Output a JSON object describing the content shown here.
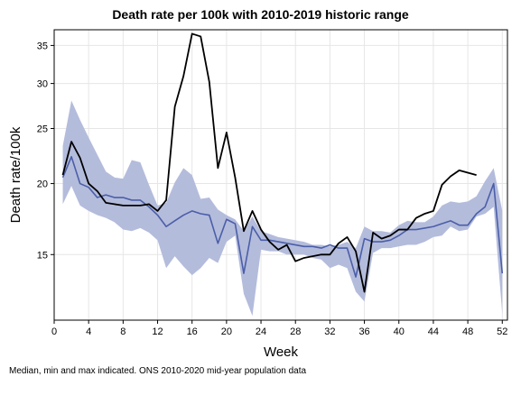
{
  "chart_data": {
    "type": "line",
    "title": "Death rate per 100k with 2010-2019 historic range",
    "xlabel": "Week",
    "ylabel": "Death rate/100k",
    "note": "Median, min and max indicated. ONS 2010-2020 mid-year population data",
    "xlim": [
      0,
      52.6
    ],
    "ylim": [
      11.5,
      37.3
    ],
    "yscale": "log",
    "grid": true,
    "xticks": [
      0,
      4,
      8,
      12,
      16,
      20,
      24,
      28,
      32,
      36,
      40,
      44,
      48,
      52
    ],
    "yticks": [
      15,
      20,
      25,
      30,
      35
    ],
    "band": {
      "x": [
        1,
        2,
        3,
        4,
        5,
        6,
        7,
        8,
        9,
        10,
        11,
        12,
        13,
        14,
        15,
        16,
        17,
        18,
        19,
        20,
        21,
        22,
        23,
        24,
        25,
        26,
        27,
        28,
        29,
        30,
        31,
        32,
        33,
        34,
        35,
        36,
        37,
        38,
        39,
        40,
        41,
        42,
        43,
        44,
        45,
        46,
        47,
        48,
        49,
        50,
        51,
        52
      ],
      "min": [
        18.4,
        19.8,
        18.3,
        17.9,
        17.6,
        17.4,
        17.1,
        16.6,
        16.5,
        16.7,
        16.4,
        15.9,
        14.2,
        14.9,
        14.3,
        13.8,
        14.2,
        14.8,
        14.5,
        15.8,
        16.2,
        12.8,
        11.7,
        15.3,
        15.2,
        15.2,
        15.0,
        15.0,
        15.0,
        14.8,
        14.7,
        14.2,
        14.4,
        14.2,
        12.9,
        12.4,
        15.1,
        15.4,
        15.4,
        15.5,
        15.6,
        15.6,
        15.8,
        16.1,
        16.2,
        16.8,
        16.5,
        16.6,
        17.5,
        17.7,
        18.2,
        11.8
      ],
      "max": [
        23.3,
        28.0,
        25.9,
        24.1,
        22.5,
        21.0,
        20.5,
        20.4,
        22.0,
        21.8,
        19.9,
        18.3,
        18.5,
        20.1,
        21.3,
        20.7,
        18.8,
        18.9,
        18.0,
        17.6,
        17.3,
        16.5,
        17.5,
        16.5,
        16.3,
        16.1,
        16.0,
        15.9,
        15.8,
        15.6,
        15.6,
        15.5,
        15.6,
        15.8,
        15.4,
        16.8,
        16.5,
        16.5,
        16.4,
        16.9,
        17.2,
        17.1,
        17.1,
        17.5,
        18.3,
        18.6,
        18.5,
        18.6,
        19.0,
        20.2,
        21.3,
        17.9
      ]
    },
    "series": [
      {
        "name": "",
        "color": "#4b5ea8",
        "x": [
          1,
          2,
          3,
          4,
          5,
          6,
          7,
          8,
          9,
          10,
          11,
          12,
          13,
          14,
          15,
          16,
          17,
          18,
          19,
          20,
          21,
          22,
          23,
          24,
          25,
          26,
          27,
          28,
          29,
          30,
          31,
          32,
          33,
          34,
          35,
          36,
          37,
          38,
          39,
          40,
          41,
          42,
          43,
          44,
          45,
          46,
          47,
          48,
          49,
          50,
          51,
          52
        ],
        "y": [
          20.5,
          22.3,
          20.0,
          19.7,
          18.9,
          19.1,
          18.9,
          18.9,
          18.7,
          18.7,
          18.2,
          17.6,
          16.8,
          17.2,
          17.6,
          17.9,
          17.7,
          17.6,
          15.7,
          17.3,
          17.0,
          13.9,
          16.8,
          15.9,
          15.9,
          15.8,
          15.7,
          15.6,
          15.5,
          15.5,
          15.4,
          15.6,
          15.4,
          15.4,
          13.7,
          16.0,
          15.8,
          15.8,
          15.9,
          16.2,
          16.6,
          16.6,
          16.7,
          16.8,
          17.0,
          17.2,
          16.9,
          16.9,
          17.7,
          18.2,
          20.0,
          13.9
        ]
      },
      {
        "name": "",
        "color": "#000000",
        "x": [
          1,
          2,
          3,
          4,
          5,
          6,
          7,
          8,
          9,
          10,
          11,
          12,
          13,
          14,
          15,
          16,
          17,
          18,
          19,
          20,
          21,
          22,
          23,
          24,
          25,
          26,
          27,
          28,
          29,
          30,
          31,
          32,
          33,
          34,
          35,
          36,
          37,
          38,
          39,
          40,
          41,
          42,
          43,
          44,
          45,
          46,
          47,
          48,
          49
        ],
        "y": [
          20.7,
          23.7,
          22.2,
          20.0,
          19.4,
          18.5,
          18.4,
          18.3,
          18.3,
          18.3,
          18.4,
          17.9,
          18.7,
          27.3,
          30.9,
          36.7,
          36.3,
          30.2,
          21.3,
          24.6,
          20.5,
          16.5,
          17.9,
          16.6,
          15.8,
          15.3,
          15.6,
          14.6,
          14.8,
          14.9,
          15.0,
          15.0,
          15.7,
          16.1,
          15.2,
          12.9,
          16.4,
          16.0,
          16.2,
          16.6,
          16.6,
          17.4,
          17.7,
          17.9,
          19.9,
          20.6,
          21.1,
          20.9,
          20.7
        ]
      }
    ]
  }
}
